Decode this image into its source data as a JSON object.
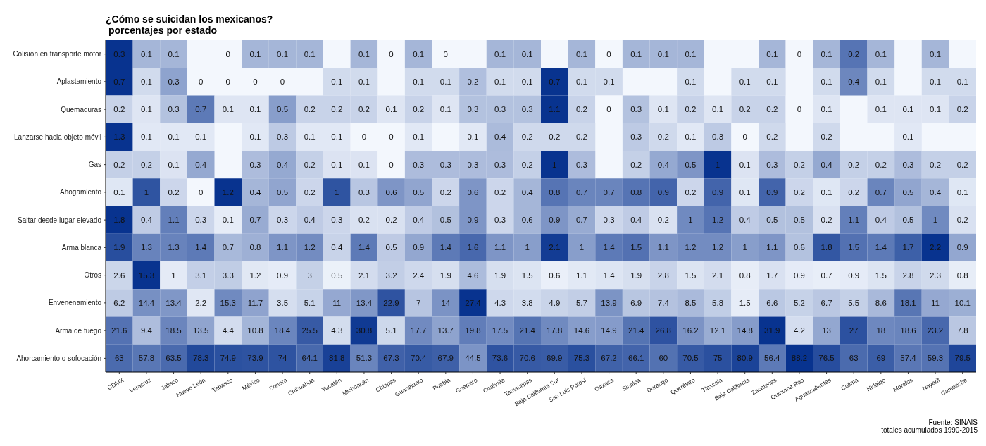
{
  "chart_data": {
    "type": "heatmap",
    "title": "¿Cómo se suicidan los mexicanos?",
    "subtitle": "porcentajes por estado",
    "categories": [
      "CDMX",
      "Veracruz",
      "Jalisco",
      "Nuevo León",
      "Tabasco",
      "México",
      "Sonora",
      "Chihuahua",
      "Yucatán",
      "Michoacán",
      "Chiapas",
      "Guanajuato",
      "Puebla",
      "Guerrero",
      "Coahuila",
      "Tamaulipas",
      "Baja California Sur",
      "San Luis Potosí",
      "Oaxaca",
      "Sinaloa",
      "Durango",
      "Querétaro",
      "Tlaxcala",
      "Baja California",
      "Zacatecas",
      "Quintana Roo",
      "Aguascalientes",
      "Colima",
      "Hidalgo",
      "Morelos",
      "Nayarit",
      "Campeche"
    ],
    "y_categories": [
      "Colisión en transporte motor",
      "Aplastamiento",
      "Quemaduras",
      "Lanzarse hacia objeto móvil",
      "Gas",
      "Ahogamiento",
      "Saltar desde lugar elevado",
      "Arma blanca",
      "Otros",
      "Envenenamiento",
      "Arma de fuego",
      "Ahorcamiento o sofocación"
    ],
    "cells": [
      [
        0.3,
        0.1,
        0.1,
        null,
        0,
        0.1,
        0.1,
        0.1,
        null,
        0.1,
        0,
        0.1,
        0,
        null,
        0.1,
        0.1,
        null,
        0.1,
        0,
        0.1,
        0.1,
        0.1,
        null,
        null,
        0.1,
        0,
        0.1,
        0.2,
        0.1,
        null,
        0.1,
        null
      ],
      [
        0.7,
        0.1,
        0.3,
        0,
        0,
        0,
        0,
        null,
        0.1,
        0.1,
        null,
        0.1,
        0.1,
        0.2,
        0.1,
        0.1,
        0.7,
        0.1,
        0.1,
        null,
        null,
        0.1,
        null,
        0.1,
        0.1,
        null,
        0.1,
        0.4,
        0.1,
        null,
        0.1,
        0.1
      ],
      [
        0.2,
        0.1,
        0.3,
        0.7,
        0.1,
        0.1,
        0.5,
        0.2,
        0.2,
        0.2,
        0.1,
        0.2,
        0.1,
        0.3,
        0.3,
        0.3,
        1.1,
        0.2,
        0,
        0.3,
        0.1,
        0.2,
        0.1,
        0.2,
        0.2,
        0,
        0.1,
        null,
        0.1,
        0.1,
        0.1,
        0.2
      ],
      [
        1.3,
        0.1,
        0.1,
        0.1,
        null,
        0.1,
        0.3,
        0.1,
        0.1,
        0,
        0,
        0.1,
        null,
        0.1,
        0.4,
        0.2,
        0.2,
        0.2,
        null,
        0.3,
        0.2,
        0.1,
        0.3,
        0,
        0.2,
        null,
        0.2,
        null,
        null,
        0.1,
        null,
        null
      ],
      [
        0.2,
        0.2,
        0.1,
        0.4,
        null,
        0.3,
        0.4,
        0.2,
        0.1,
        0.1,
        0,
        0.3,
        0.3,
        0.3,
        0.3,
        0.2,
        1,
        0.3,
        null,
        0.2,
        0.4,
        0.5,
        1,
        0.1,
        0.3,
        0.2,
        0.4,
        0.2,
        0.2,
        0.3,
        0.2,
        0.2
      ],
      [
        0.1,
        1,
        0.2,
        0,
        1.2,
        0.4,
        0.5,
        0.2,
        1,
        0.3,
        0.6,
        0.5,
        0.2,
        0.6,
        0.2,
        0.4,
        0.8,
        0.7,
        0.7,
        0.8,
        0.9,
        0.2,
        0.9,
        0.1,
        0.9,
        0.2,
        0.1,
        0.2,
        0.7,
        0.5,
        0.4,
        0.1
      ],
      [
        1.8,
        0.4,
        1.1,
        0.3,
        0.1,
        0.7,
        0.3,
        0.4,
        0.3,
        0.2,
        0.2,
        0.4,
        0.5,
        0.9,
        0.3,
        0.6,
        0.9,
        0.7,
        0.3,
        0.4,
        0.2,
        1,
        1.2,
        0.4,
        0.5,
        0.5,
        0.2,
        1.1,
        0.4,
        0.5,
        1,
        0.2
      ],
      [
        1.9,
        1.3,
        1.3,
        1.4,
        0.7,
        0.8,
        1.1,
        1.2,
        0.4,
        1.4,
        0.5,
        0.9,
        1.4,
        1.6,
        1.1,
        1,
        2.1,
        1,
        1.4,
        1.5,
        1.1,
        1.2,
        1.2,
        1,
        1.1,
        0.6,
        1.8,
        1.5,
        1.4,
        1.7,
        2.2,
        0.9
      ],
      [
        2.6,
        15.3,
        1,
        3.1,
        3.3,
        1.2,
        0.9,
        3,
        0.5,
        2.1,
        3.2,
        2.4,
        1.9,
        4.6,
        1.9,
        1.5,
        0.6,
        1.1,
        1.4,
        1.9,
        2.8,
        1.5,
        2.1,
        0.8,
        1.7,
        0.9,
        0.7,
        0.9,
        1.5,
        2.8,
        2.3,
        0.8
      ],
      [
        6.2,
        14.4,
        13.4,
        2.2,
        15.3,
        11.7,
        3.5,
        5.1,
        11,
        13.4,
        22.9,
        7,
        14,
        27.4,
        4.3,
        3.8,
        4.9,
        5.7,
        13.9,
        6.9,
        7.4,
        8.5,
        5.8,
        1.5,
        6.6,
        5.2,
        6.7,
        5.5,
        8.6,
        18.1,
        11,
        10.1
      ],
      [
        21.6,
        9.4,
        18.5,
        13.5,
        4.4,
        10.8,
        18.4,
        25.5,
        4.3,
        30.8,
        5.1,
        17.7,
        13.7,
        19.8,
        17.5,
        21.4,
        17.8,
        14.6,
        14.9,
        21.4,
        26.8,
        16.2,
        12.1,
        14.8,
        31.9,
        4.2,
        13,
        27,
        18,
        18.6,
        23.2,
        7.8
      ],
      [
        63,
        57.8,
        63.5,
        78.3,
        74.9,
        73.9,
        74,
        64.1,
        81.8,
        51.3,
        67.3,
        70.4,
        67.9,
        44.5,
        73.6,
        70.6,
        69.9,
        75.3,
        67.2,
        66.1,
        60,
        70.5,
        75,
        80.9,
        56.4,
        88.2,
        76.5,
        63,
        69,
        57.4,
        59.3,
        79.5
      ]
    ],
    "data_labels": true,
    "color": "#08338f",
    "annotations": [
      "Fuente: SINAIS",
      "totales acumulados 1990-2015"
    ]
  }
}
